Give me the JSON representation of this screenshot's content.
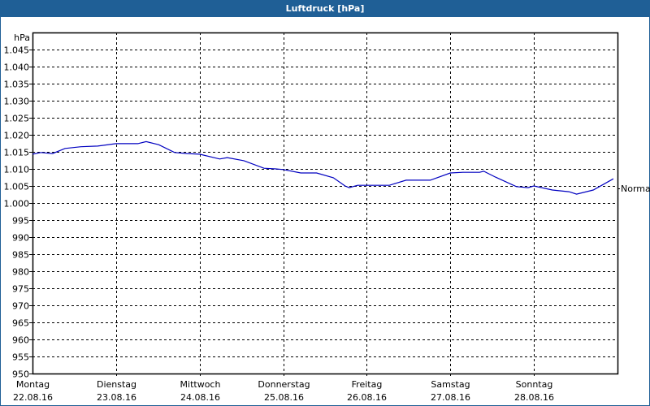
{
  "window": {
    "title": "Luftdruck [hPa]"
  },
  "colors": {
    "titlebar": "#1f5f96",
    "line": "#0000c0",
    "grid": "#000000"
  },
  "chart_data": {
    "type": "line",
    "title": "Luftdruck [hPa]",
    "ylabel": "hPa",
    "xlabel": "",
    "ylim": [
      950,
      1045
    ],
    "grid": true,
    "y_ticks": [
      "1.045",
      "1.040",
      "1.035",
      "1.030",
      "1.025",
      "1.020",
      "1.015",
      "1.010",
      "1.005",
      "1.000",
      "995",
      "990",
      "985",
      "980",
      "975",
      "970",
      "965",
      "960",
      "955",
      "950"
    ],
    "x_ticks": [
      {
        "day": "Montag",
        "date": "22.08.16"
      },
      {
        "day": "Dienstag",
        "date": "23.08.16"
      },
      {
        "day": "Mittwoch",
        "date": "24.08.16"
      },
      {
        "day": "Donnerstag",
        "date": "25.08.16"
      },
      {
        "day": "Freitag",
        "date": "26.08.16"
      },
      {
        "day": "Samstag",
        "date": "27.08.16"
      },
      {
        "day": "Sonntag",
        "date": "28.08.16"
      }
    ],
    "annotation": {
      "label": "Normal"
    },
    "series": [
      {
        "name": "Luftdruck",
        "x_days": [
          0,
          0.1,
          0.24,
          0.39,
          0.58,
          0.78,
          1.0,
          1.26,
          1.36,
          1.51,
          1.7,
          1.85,
          2.0,
          2.24,
          2.33,
          2.53,
          2.77,
          2.91,
          3.0,
          3.21,
          3.4,
          3.6,
          3.74,
          3.79,
          3.89,
          4.27,
          4.47,
          4.76,
          5.0,
          5.15,
          5.35,
          5.4,
          5.54,
          5.79,
          5.93,
          6.0,
          6.22,
          6.42,
          6.51,
          6.71,
          6.95
        ],
        "values": [
          1014.3,
          1014.8,
          1014.5,
          1016.0,
          1016.5,
          1016.7,
          1017.4,
          1017.4,
          1018.0,
          1017.1,
          1014.8,
          1014.5,
          1014.3,
          1012.9,
          1013.3,
          1012.4,
          1010.2,
          1010.0,
          1009.8,
          1008.8,
          1008.8,
          1007.4,
          1005.0,
          1004.5,
          1005.2,
          1005.2,
          1006.7,
          1006.7,
          1008.8,
          1009.0,
          1009.0,
          1009.3,
          1007.6,
          1004.8,
          1004.5,
          1005.0,
          1003.8,
          1003.3,
          1002.6,
          1003.8,
          1007.1
        ]
      }
    ]
  }
}
